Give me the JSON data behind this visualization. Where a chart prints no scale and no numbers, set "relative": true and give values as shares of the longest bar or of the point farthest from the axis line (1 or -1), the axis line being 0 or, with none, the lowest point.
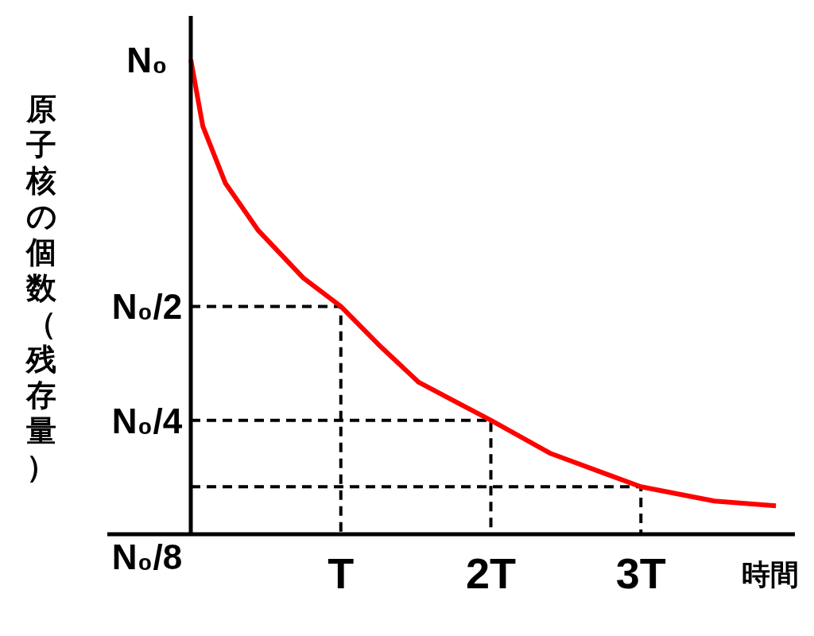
{
  "chart_data": {
    "type": "line",
    "relative": true,
    "xlabel": "時間",
    "ylabel": "原子核の個数（残存量）",
    "xlim": [
      0,
      4.0
    ],
    "xticks": [
      {
        "value": 1,
        "label": "T"
      },
      {
        "value": 2,
        "label": "2T"
      },
      {
        "value": 3,
        "label": "3T"
      }
    ],
    "annotations": [
      "N₀",
      "N₀/2",
      "N₀/4",
      "N₀/8"
    ],
    "series": [
      {
        "color": "#ff0000",
        "line_style": "solid",
        "x": [
          0,
          0.08,
          0.23,
          0.45,
          0.75,
          1,
          1.25,
          1.52,
          2,
          2.4,
          3,
          3.49,
          3.9
        ],
        "values": [
          1,
          0.86,
          0.74,
          0.64,
          0.54,
          0.48,
          0.4,
          0.32,
          0.24,
          0.17,
          0.1,
          0.07,
          0.06
        ]
      },
      {
        "color": "#000000",
        "line_style": "dashed",
        "x": [
          0,
          1,
          1
        ],
        "values": [
          0.48,
          0.48,
          0
        ]
      },
      {
        "color": "#000000",
        "line_style": "dashed",
        "x": [
          0,
          2,
          2
        ],
        "values": [
          0.24,
          0.24,
          0
        ]
      },
      {
        "color": "#000000",
        "line_style": "dashed",
        "x": [
          0,
          3,
          3
        ],
        "values": [
          0.1,
          0.1,
          0
        ]
      }
    ]
  }
}
